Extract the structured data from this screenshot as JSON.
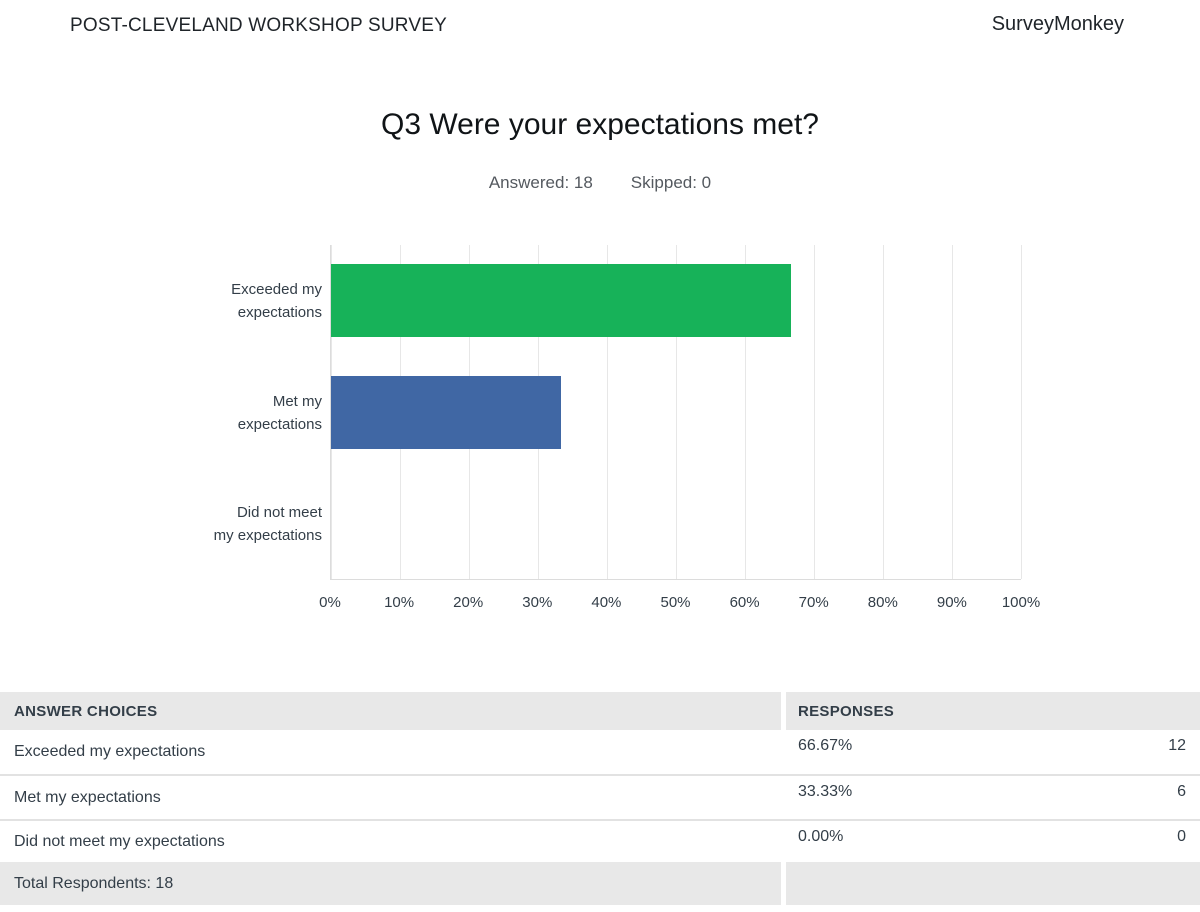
{
  "header": {
    "survey_title": "POST-CLEVELAND WORKSHOP SURVEY",
    "brand": "SurveyMonkey"
  },
  "question": {
    "title": "Q3 Were your expectations met?",
    "answered_label": "Answered: 18",
    "skipped_label": "Skipped: 0"
  },
  "chart_data": {
    "type": "bar",
    "orientation": "horizontal",
    "title": "Q3 Were your expectations met?",
    "categories": [
      "Exceeded my expectations",
      "Met my expectations",
      "Did not meet my expectations"
    ],
    "category_lines": [
      [
        "Exceeded my",
        "expectations"
      ],
      [
        "Met my",
        "expectations"
      ],
      [
        "Did not meet",
        "my expectations"
      ]
    ],
    "values": [
      66.67,
      33.33,
      0
    ],
    "bar_colors": [
      "#17b259",
      "#4067a4",
      null
    ],
    "x_ticks": [
      "0%",
      "10%",
      "20%",
      "30%",
      "40%",
      "50%",
      "60%",
      "70%",
      "80%",
      "90%",
      "100%"
    ],
    "xlim": [
      0,
      100
    ],
    "grid": true,
    "legend": false
  },
  "table": {
    "headers": {
      "choices": "ANSWER CHOICES",
      "responses": "RESPONSES"
    },
    "rows": [
      {
        "choice": "Exceeded my expectations",
        "percent": "66.67%",
        "count": "12"
      },
      {
        "choice": "Met my expectations",
        "percent": "33.33%",
        "count": "6"
      },
      {
        "choice": "Did not meet my expectations",
        "percent": "0.00%",
        "count": "0"
      }
    ],
    "footer": "Total Respondents: 18"
  },
  "colors": {
    "bar_green": "#17b259",
    "bar_blue": "#4067a4",
    "text_dark": "#333e48",
    "table_header_bg": "#e8e8e8",
    "grid_line": "#e7e7e7"
  }
}
